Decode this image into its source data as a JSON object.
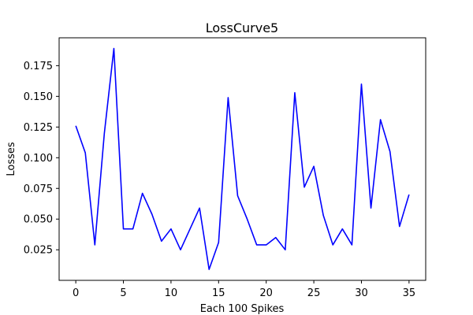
{
  "chart_data": {
    "type": "line",
    "title": "LossCurve5",
    "xlabel": "Each 100 Spikes",
    "ylabel": "Losses",
    "xlim": [
      -1.75,
      36.75
    ],
    "ylim": [
      0.0001,
      0.1977
    ],
    "xticks": [
      0,
      5,
      10,
      15,
      20,
      25,
      30,
      35
    ],
    "yticks": [
      0.025,
      0.05,
      0.075,
      0.1,
      0.125,
      0.15,
      0.175
    ],
    "ytick_labels": [
      "0.025",
      "0.050",
      "0.075",
      "0.100",
      "0.125",
      "0.150",
      "0.175"
    ],
    "grid": false,
    "series": [
      {
        "color": "#0000ff",
        "x": [
          0,
          1,
          2,
          3,
          4,
          5,
          6,
          7,
          8,
          9,
          10,
          11,
          12,
          13,
          14,
          15,
          16,
          17,
          18,
          19,
          20,
          21,
          22,
          23,
          24,
          25,
          26,
          27,
          28,
          29,
          30,
          31,
          32,
          33,
          34,
          35
        ],
        "y": [
          0.126,
          0.104,
          0.029,
          0.12,
          0.189,
          0.042,
          0.042,
          0.071,
          0.054,
          0.032,
          0.042,
          0.025,
          0.042,
          0.059,
          0.009,
          0.031,
          0.149,
          0.069,
          0.05,
          0.029,
          0.029,
          0.035,
          0.025,
          0.153,
          0.076,
          0.093,
          0.053,
          0.029,
          0.042,
          0.029,
          0.16,
          0.059,
          0.131,
          0.105,
          0.044,
          0.07
        ]
      }
    ]
  }
}
